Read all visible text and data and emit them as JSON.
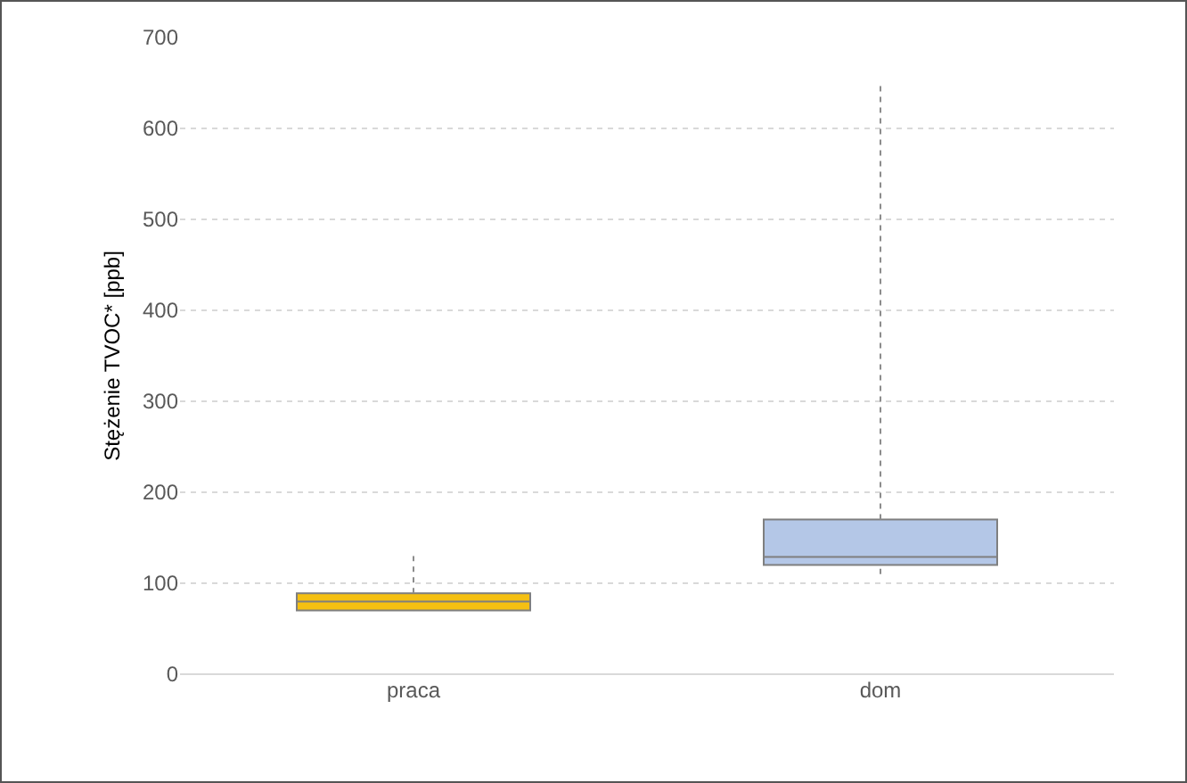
{
  "chart_data": {
    "type": "box",
    "ylabel": "Stężenie TVOC* [ppb]",
    "categories": [
      "praca",
      "dom"
    ],
    "colors": [
      "#f5c012",
      "#b4c7e7"
    ],
    "boxes": [
      {
        "low": 70,
        "q1": 70,
        "median": 80,
        "q3": 89,
        "high": 130
      },
      {
        "low": 110,
        "q1": 120,
        "median": 129,
        "q3": 170,
        "high": 650
      }
    ],
    "ylim": [
      0,
      700
    ],
    "yticks": [
      0,
      100,
      200,
      300,
      400,
      500,
      600,
      700
    ],
    "grid": "y"
  }
}
